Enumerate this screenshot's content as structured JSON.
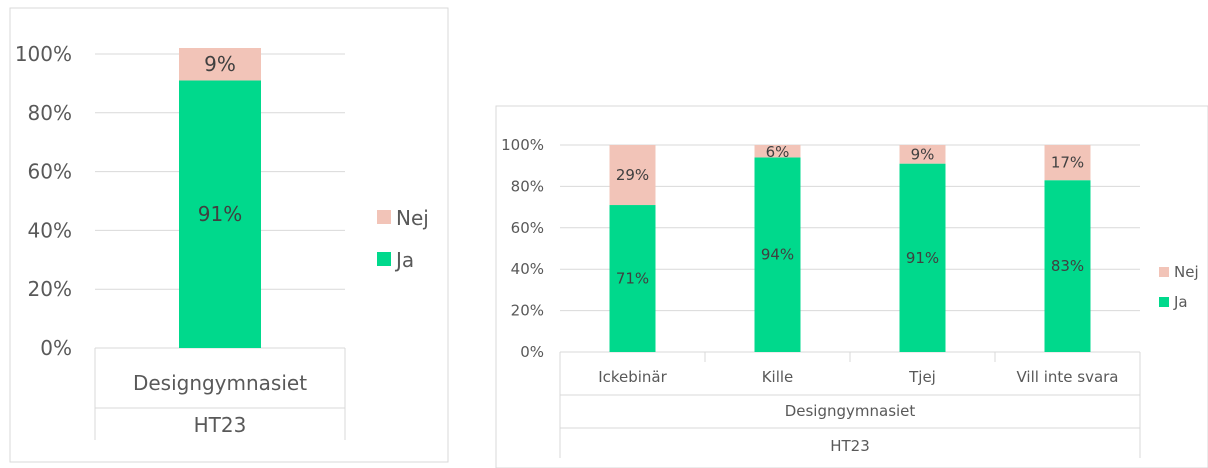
{
  "colors": {
    "ja": "#00d98c",
    "nej": "#f2c4b8",
    "grid": "#d9d9d9",
    "text": "#595959"
  },
  "chart_data": [
    {
      "type": "bar",
      "stacked": true,
      "percent": true,
      "ylim": [
        0,
        100
      ],
      "yticks": [
        "0%",
        "20%",
        "40%",
        "60%",
        "80%",
        "100%"
      ],
      "categories": [
        "Designgymnasiet"
      ],
      "group_label": "HT23",
      "series": [
        {
          "name": "Ja",
          "values": [
            91
          ],
          "labels": [
            "91%"
          ]
        },
        {
          "name": "Nej",
          "values": [
            9
          ],
          "labels": [
            "9%"
          ]
        }
      ],
      "legend": [
        "Nej",
        "Ja"
      ],
      "legend_position": "right",
      "grid": true
    },
    {
      "type": "bar",
      "stacked": true,
      "percent": true,
      "ylim": [
        0,
        100
      ],
      "yticks": [
        "0%",
        "20%",
        "40%",
        "60%",
        "80%",
        "100%"
      ],
      "categories": [
        "Ickebinär",
        "Kille",
        "Tjej",
        "Vill inte svara"
      ],
      "group_label": "Designgymnasiet",
      "outer_group_label": "HT23",
      "series": [
        {
          "name": "Ja",
          "values": [
            71,
            94,
            91,
            83
          ],
          "labels": [
            "71%",
            "94%",
            "91%",
            "83%"
          ]
        },
        {
          "name": "Nej",
          "values": [
            29,
            6,
            9,
            17
          ],
          "labels": [
            "29%",
            "6%",
            "9%",
            "17%"
          ]
        }
      ],
      "legend": [
        "Nej",
        "Ja"
      ],
      "legend_position": "right",
      "grid": true
    }
  ]
}
